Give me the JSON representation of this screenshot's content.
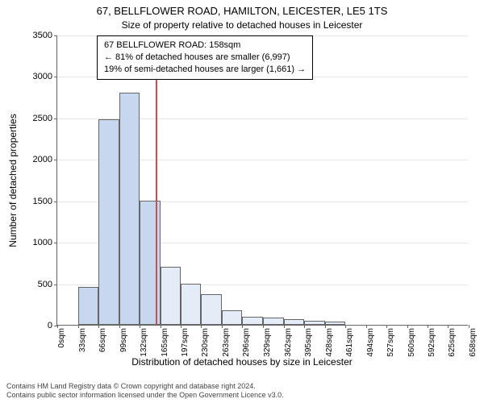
{
  "title_main": "67, BELLFLOWER ROAD, HAMILTON, LEICESTER, LE5 1TS",
  "title_sub": "Size of property relative to detached houses in Leicester",
  "info_box": {
    "line1": "67 BELLFLOWER ROAD: 158sqm",
    "line2": "← 81% of detached houses are smaller (6,997)",
    "line3": "19% of semi-detached houses are larger (1,661) →"
  },
  "y_label": "Number of detached properties",
  "x_label": "Distribution of detached houses by size in Leicester",
  "footer": {
    "line1": "Contains HM Land Registry data © Crown copyright and database right 2024.",
    "line2": "Contains public sector information licensed under the Open Government Licence v3.0."
  },
  "chart": {
    "type": "histogram",
    "background_color": "#ffffff",
    "grid_color": "#e6e6e6",
    "axis_color": "#666666",
    "bar_fill": "#c7d7ef",
    "bar_fill_right": "#e4ecf7",
    "bar_border": "#666666",
    "marker_color": "#c94f4f",
    "marker_x": 158,
    "ylim": [
      0,
      3500
    ],
    "ytick_step": 500,
    "x_bin_width": 33,
    "x_bins": [
      0,
      33,
      66,
      99,
      132,
      165,
      197,
      230,
      263,
      296,
      329,
      362,
      395,
      428,
      461,
      494,
      527,
      560,
      592,
      625,
      658
    ],
    "x_tick_unit": "sqm",
    "values": [
      0,
      460,
      2480,
      2800,
      1500,
      700,
      500,
      370,
      180,
      100,
      90,
      70,
      50,
      40,
      0,
      0,
      0,
      0,
      0,
      0
    ],
    "title_fontsize": 13,
    "label_fontsize": 12,
    "tick_fontsize": 11
  }
}
